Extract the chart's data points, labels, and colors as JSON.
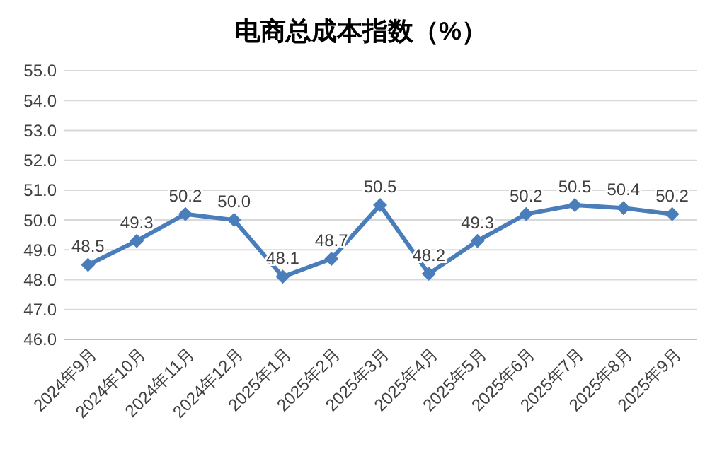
{
  "chart_data": {
    "type": "line",
    "title": "电商总成本指数（%）",
    "categories": [
      "2024年9月",
      "2024年10月",
      "2024年11月",
      "2024年12月",
      "2025年1月",
      "2025年2月",
      "2025年3月",
      "2025年4月",
      "2025年5月",
      "2025年6月",
      "2025年7月",
      "2025年8月",
      "2025年9月"
    ],
    "series": [
      {
        "color": "#4a7ebb",
        "values": [
          48.5,
          49.3,
          50.2,
          50.0,
          48.1,
          48.7,
          50.5,
          48.2,
          49.3,
          50.2,
          50.5,
          50.4,
          50.2
        ],
        "value_labels": [
          "48.5",
          "49.3",
          "50.2",
          "50.0",
          "48.1",
          "48.7",
          "50.5",
          "48.2",
          "49.3",
          "50.2",
          "50.5",
          "50.4",
          "50.2"
        ]
      }
    ],
    "ylim": [
      46,
      55
    ],
    "yticks": [
      {
        "value": 46,
        "label": "46.0"
      },
      {
        "value": 47,
        "label": "47.0"
      },
      {
        "value": 48,
        "label": "48.0"
      },
      {
        "value": 49,
        "label": "49.0"
      },
      {
        "value": 50,
        "label": "50.0"
      },
      {
        "value": 51,
        "label": "51.0"
      },
      {
        "value": 52,
        "label": "52.0"
      },
      {
        "value": 53,
        "label": "53.0"
      },
      {
        "value": 54,
        "label": "54.0"
      },
      {
        "value": 55,
        "label": "55.0"
      }
    ],
    "grid": "y",
    "marker": "diamond",
    "line_style": "solid"
  }
}
